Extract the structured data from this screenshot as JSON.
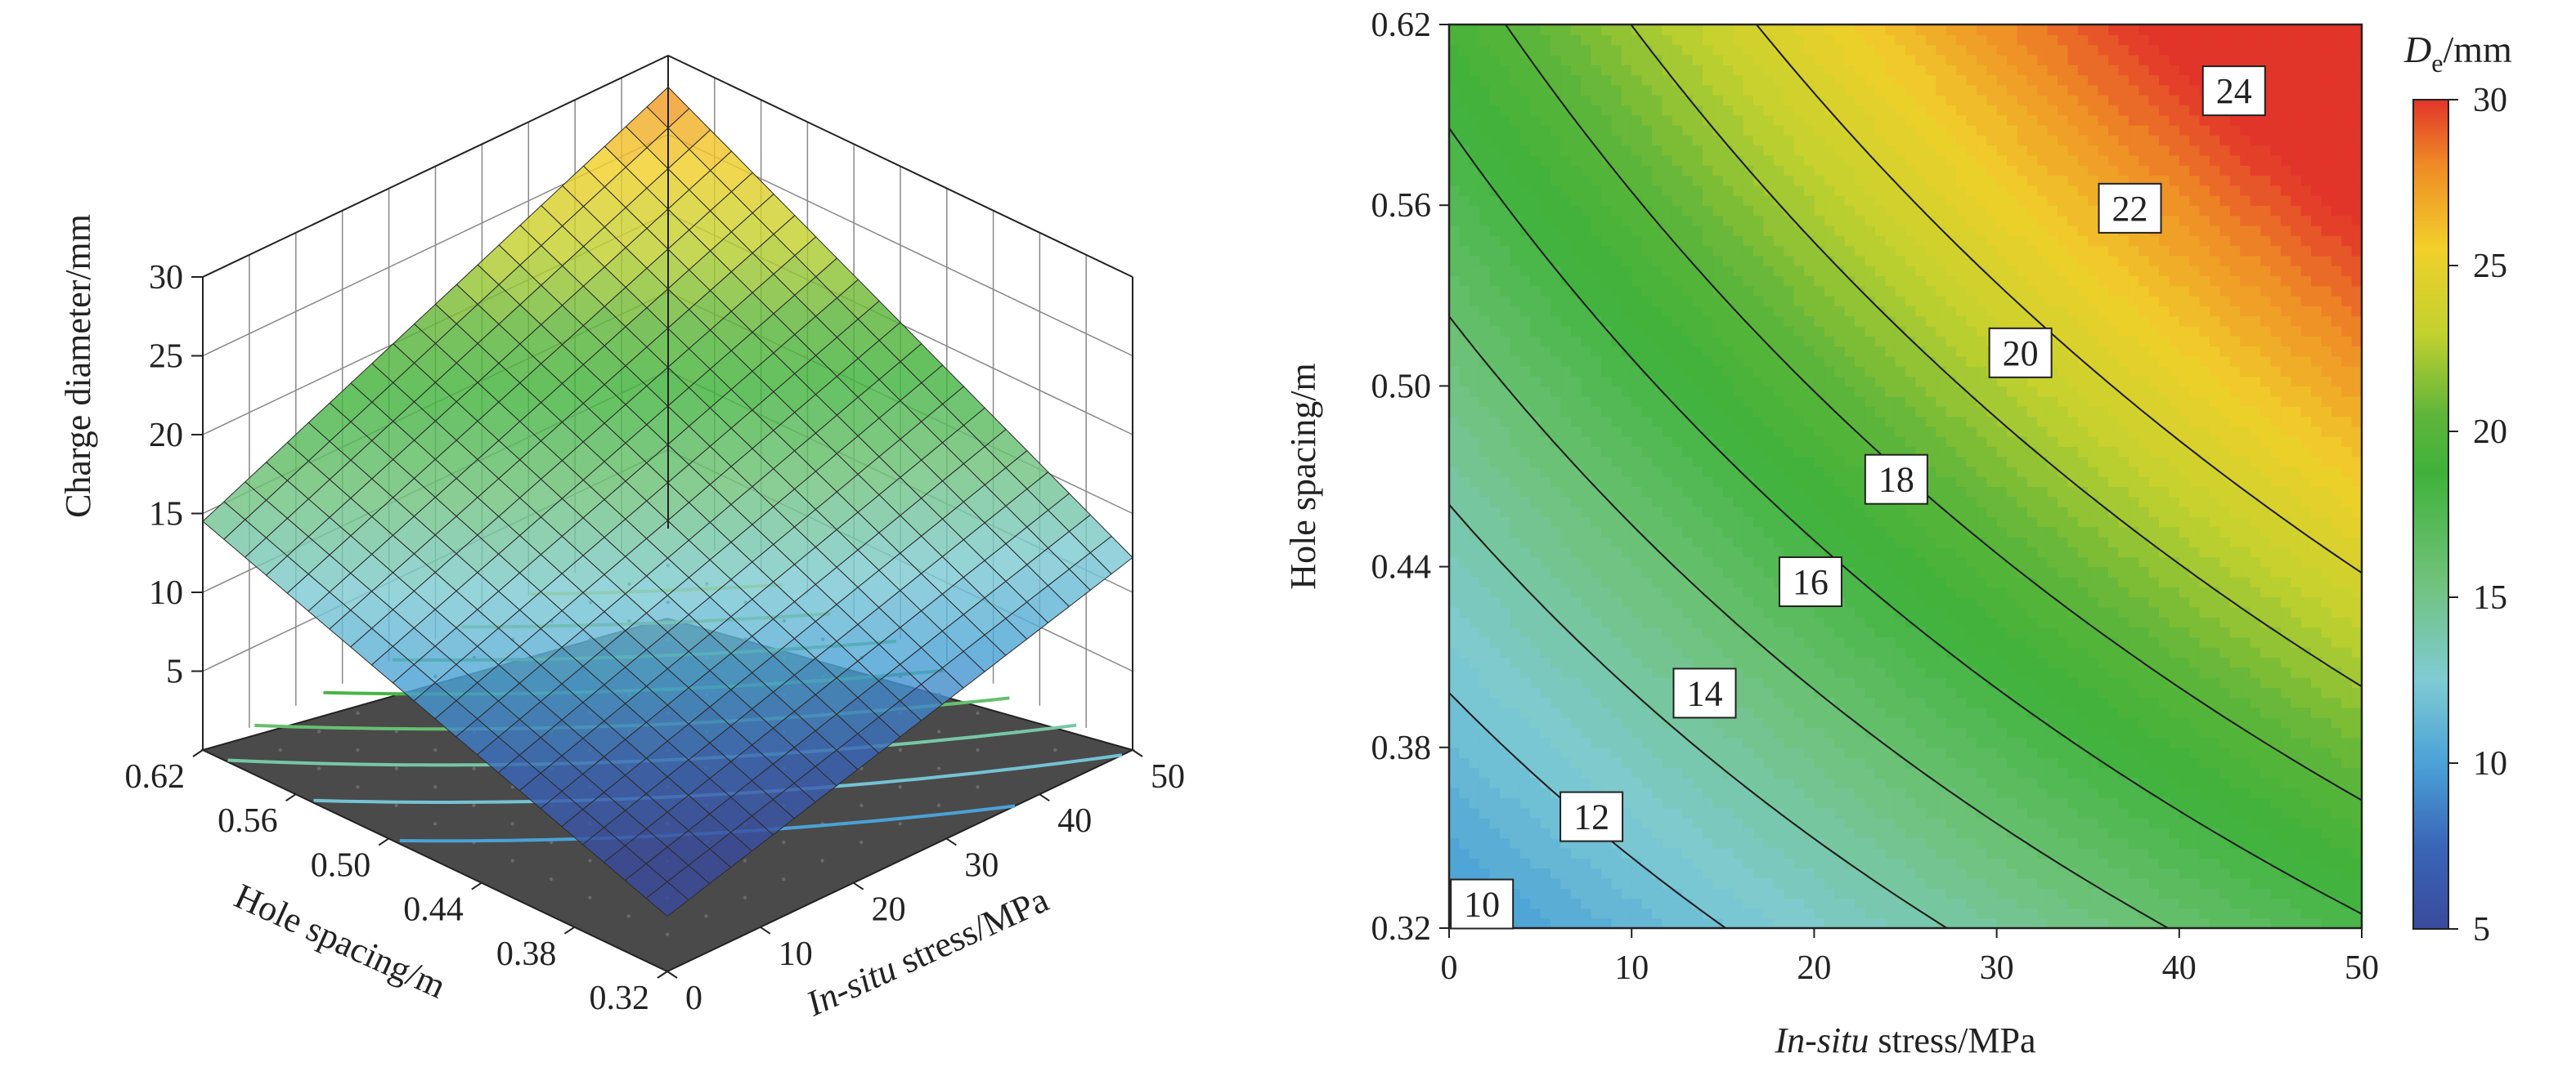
{
  "chart_data": [
    {
      "type": "surface3d",
      "zlabel": "Charge diameter/mm",
      "y_label": "Hole spacing/m",
      "x_label": {
        "italic": "In-situ",
        "rest": " stress/MPa"
      },
      "z_ticks": [
        "30",
        "25",
        "20",
        "15",
        "10",
        "5"
      ],
      "y_ticks": [
        "0.62",
        "0.56",
        "0.50",
        "0.44",
        "0.38",
        "0.32"
      ],
      "x_ticks": [
        "0",
        "10",
        "20",
        "30",
        "40",
        "50"
      ],
      "xlim": [
        0,
        50
      ],
      "ylim": [
        0.32,
        0.62
      ],
      "zlim": [
        0,
        30
      ],
      "surface": {
        "x": [
          0,
          50
        ],
        "y": [
          0.32,
          0.62
        ],
        "z_at_corners": {
          "x0_y032": 3.5,
          "x50_y032": 12.2,
          "x0_y062": 14.5,
          "x50_y062": 28.0
        }
      },
      "floor_contours": [
        10,
        12,
        14,
        16,
        18,
        20,
        22,
        24
      ],
      "floor_color": "#4a4a4a"
    },
    {
      "type": "contour",
      "xlabel": {
        "italic": "In-situ",
        "rest": " stress/MPa"
      },
      "ylabel": "Hole spacing/m",
      "x_ticks": [
        "0",
        "10",
        "20",
        "30",
        "40",
        "50"
      ],
      "y_ticks": [
        "0.62",
        "0.56",
        "0.50",
        "0.44",
        "0.38",
        "0.32"
      ],
      "xlim": [
        0,
        50
      ],
      "ylim": [
        0.32,
        0.62
      ],
      "contour_levels": [
        10,
        12,
        14,
        16,
        18,
        20,
        22,
        24
      ],
      "contour_labels": [
        {
          "text": "10",
          "x": 1.8,
          "y": 0.328
        },
        {
          "text": "12",
          "x": 7.8,
          "y": 0.357
        },
        {
          "text": "14",
          "x": 14.0,
          "y": 0.398
        },
        {
          "text": "16",
          "x": 19.8,
          "y": 0.435
        },
        {
          "text": "18",
          "x": 24.5,
          "y": 0.469
        },
        {
          "text": "20",
          "x": 31.3,
          "y": 0.511
        },
        {
          "text": "22",
          "x": 37.3,
          "y": 0.559
        },
        {
          "text": "24",
          "x": 43.0,
          "y": 0.598
        }
      ],
      "colorbar": {
        "title": {
          "main": "D",
          "sub": "e",
          "rest": "/mm"
        },
        "range": [
          5,
          30
        ],
        "ticks": [
          "30",
          "25",
          "20",
          "15",
          "10",
          "5"
        ]
      }
    }
  ]
}
